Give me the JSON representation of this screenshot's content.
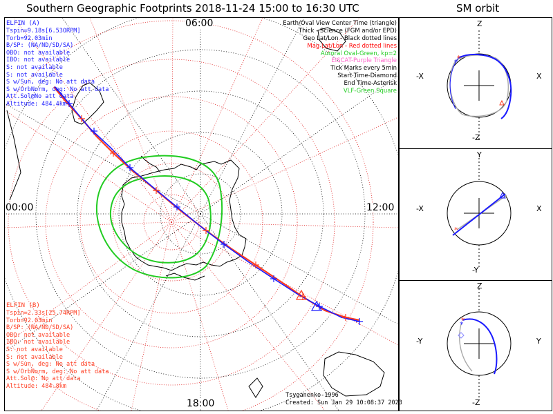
{
  "header": {
    "title": "Southern Geographic Footprints 2018-11-24 15:00 to 16:30 UTC",
    "panel_title": "SM orbit"
  },
  "hour_labels": {
    "top": "06:00",
    "left": "00:00",
    "right": "12:00",
    "bottom": "18:00"
  },
  "elfin_a": {
    "name": "ELFIN (A)",
    "lines": [
      "Tspin=9.18s[6.53ORPM]",
      "Torb=92.03min",
      "B/SP: (NA/ND/SD/SA)",
      "OBO: not available",
      "IBO: not available",
      "S: not available",
      "S: not available",
      "S w/Sun, deg: No att data",
      "S w/OrbNorm, deg: No att data",
      "Att.Sol@No att data",
      "Altitude: 484.4km"
    ]
  },
  "elfin_b": {
    "name": "ELFIN (B)",
    "lines": [
      "Tspin=2.33s[25.74RPM]",
      "Torb=92.03min",
      "B/SP: (NA/ND/SD/SA)",
      "OBO: not available",
      "IBO: not available",
      "S: not available",
      "S: not available",
      "S w/Sun, deg: No att data",
      "S w/OrbNorm, deg: No att data",
      "Att.Sol@: No att data",
      "Altitude: 484.8km"
    ]
  },
  "legend": [
    {
      "text": "Earth/Oval View Center Time (triangle)",
      "color": "#000000"
    },
    {
      "text": "Thick - Science (FGM and/or EPD)",
      "color": "#000000"
    },
    {
      "text": "Geo Lat/Lon - Black dotted lines",
      "color": "#000000"
    },
    {
      "text": "Mag Lat/Lon - Red dotted lines",
      "color": "#ff0000"
    },
    {
      "text": "Auroral Oval-Green, kp=2",
      "color": "#22cc22"
    },
    {
      "text": "EISCAT-Purple Triangle",
      "color": "#ff66cc"
    },
    {
      "text": "Tick Marks every 5min",
      "color": "#000000"
    },
    {
      "text": "Start Time-Diamond",
      "color": "#000000"
    },
    {
      "text": "End Time-Asterisk",
      "color": "#000000"
    },
    {
      "text": "VLF-Green Square",
      "color": "#22cc22"
    }
  ],
  "footer": {
    "model": "Tsyganenko-1996",
    "created": "Created: Sun Jan 29 10:08:37 2023"
  },
  "sm_panels": [
    {
      "top": "Z",
      "bottom": "-Z",
      "left": "-X",
      "right": "X"
    },
    {
      "top": "Y",
      "bottom": "-Y",
      "left": "-X",
      "right": "X"
    },
    {
      "top": "Z",
      "bottom": "-Z",
      "left": "-Y",
      "right": "Y"
    }
  ],
  "colors": {
    "elfin_a": "#1a1aff",
    "elfin_b": "#ff3b1f",
    "oval": "#22cc22",
    "mag_grid": "#e02020"
  }
}
